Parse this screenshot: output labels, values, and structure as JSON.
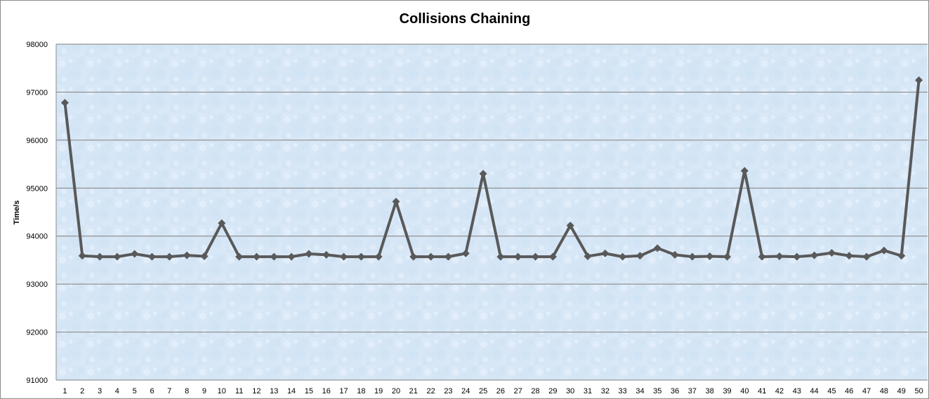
{
  "chart_data": {
    "type": "line",
    "title": "Collisions Chaining",
    "xlabel": "",
    "ylabel": "Time/s",
    "ylim": [
      91000,
      98000
    ],
    "yticks": [
      91000,
      92000,
      93000,
      94000,
      95000,
      96000,
      97000,
      98000
    ],
    "grid": true,
    "legend": "none",
    "colors": {
      "line": "#595959",
      "grid": "#7f7f7f",
      "plot_bg": "#d9e8f7"
    },
    "categories": [
      "1",
      "2",
      "3",
      "4",
      "5",
      "6",
      "7",
      "8",
      "9",
      "10",
      "11",
      "12",
      "13",
      "14",
      "15",
      "16",
      "17",
      "18",
      "19",
      "20",
      "21",
      "22",
      "23",
      "24",
      "25",
      "26",
      "27",
      "28",
      "29",
      "30",
      "31",
      "32",
      "33",
      "34",
      "35",
      "36",
      "37",
      "38",
      "39",
      "40",
      "41",
      "42",
      "43",
      "44",
      "45",
      "46",
      "47",
      "48",
      "49",
      "50"
    ],
    "series": [
      {
        "values": [
          96780,
          93590,
          93570,
          93570,
          93630,
          93570,
          93570,
          93600,
          93580,
          94270,
          93570,
          93570,
          93570,
          93570,
          93630,
          93610,
          93570,
          93570,
          93570,
          94720,
          93570,
          93570,
          93570,
          93640,
          95300,
          93570,
          93570,
          93570,
          93570,
          94220,
          93580,
          93640,
          93570,
          93590,
          93750,
          93610,
          93570,
          93580,
          93570,
          95360,
          93570,
          93580,
          93570,
          93600,
          93650,
          93590,
          93570,
          93700,
          93590,
          97250
        ]
      }
    ]
  }
}
